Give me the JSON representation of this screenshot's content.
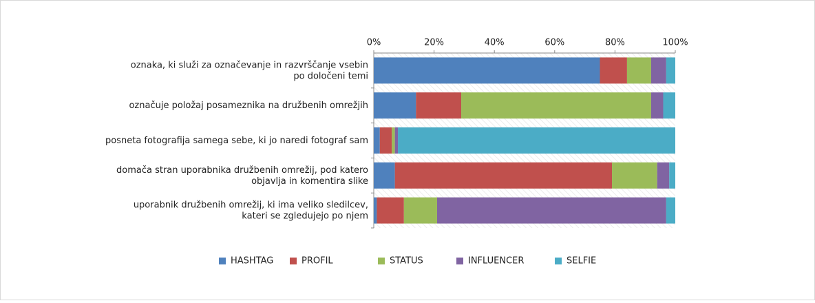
{
  "chart_data": {
    "type": "bar",
    "orientation": "horizontal",
    "stacked": true,
    "categories": [
      "oznaka, ki služi za označevanje in razvrščanje vsebin\npo določeni temi",
      "označuje položaj posameznika na družbenih omrežjih",
      "posneta fotografija samega sebe, ki jo naredi fotograf sam",
      "domača stran uporabnika družbenih omrežij, pod katero\nobjavlja in komentira slike",
      "uporabnik družbenih omrežij, ki ima veliko sledilcev,\nkateri se zgledujejo po njem"
    ],
    "series": [
      {
        "name": "HASHTAG",
        "color": "#4f81bd",
        "values": [
          75,
          14,
          2,
          7,
          1
        ]
      },
      {
        "name": "PROFIL",
        "color": "#c0504d",
        "values": [
          9,
          15,
          4,
          72,
          9
        ]
      },
      {
        "name": "STATUS",
        "color": "#9bbb59",
        "values": [
          8,
          63,
          1,
          15,
          11
        ]
      },
      {
        "name": "INFLUENCER",
        "color": "#8064a2",
        "values": [
          5,
          4,
          1,
          4,
          76
        ]
      },
      {
        "name": "SELFIE",
        "color": "#4bacc6",
        "values": [
          3,
          4,
          92,
          2,
          3
        ]
      }
    ],
    "xlim": [
      0,
      100
    ],
    "xticks": [
      {
        "value": 0,
        "label": "0%"
      },
      {
        "value": 20,
        "label": "20%"
      },
      {
        "value": 40,
        "label": "40%"
      },
      {
        "value": 60,
        "label": "60%"
      },
      {
        "value": 80,
        "label": "80%"
      },
      {
        "value": 100,
        "label": "100%"
      }
    ],
    "legend": "bottom"
  }
}
